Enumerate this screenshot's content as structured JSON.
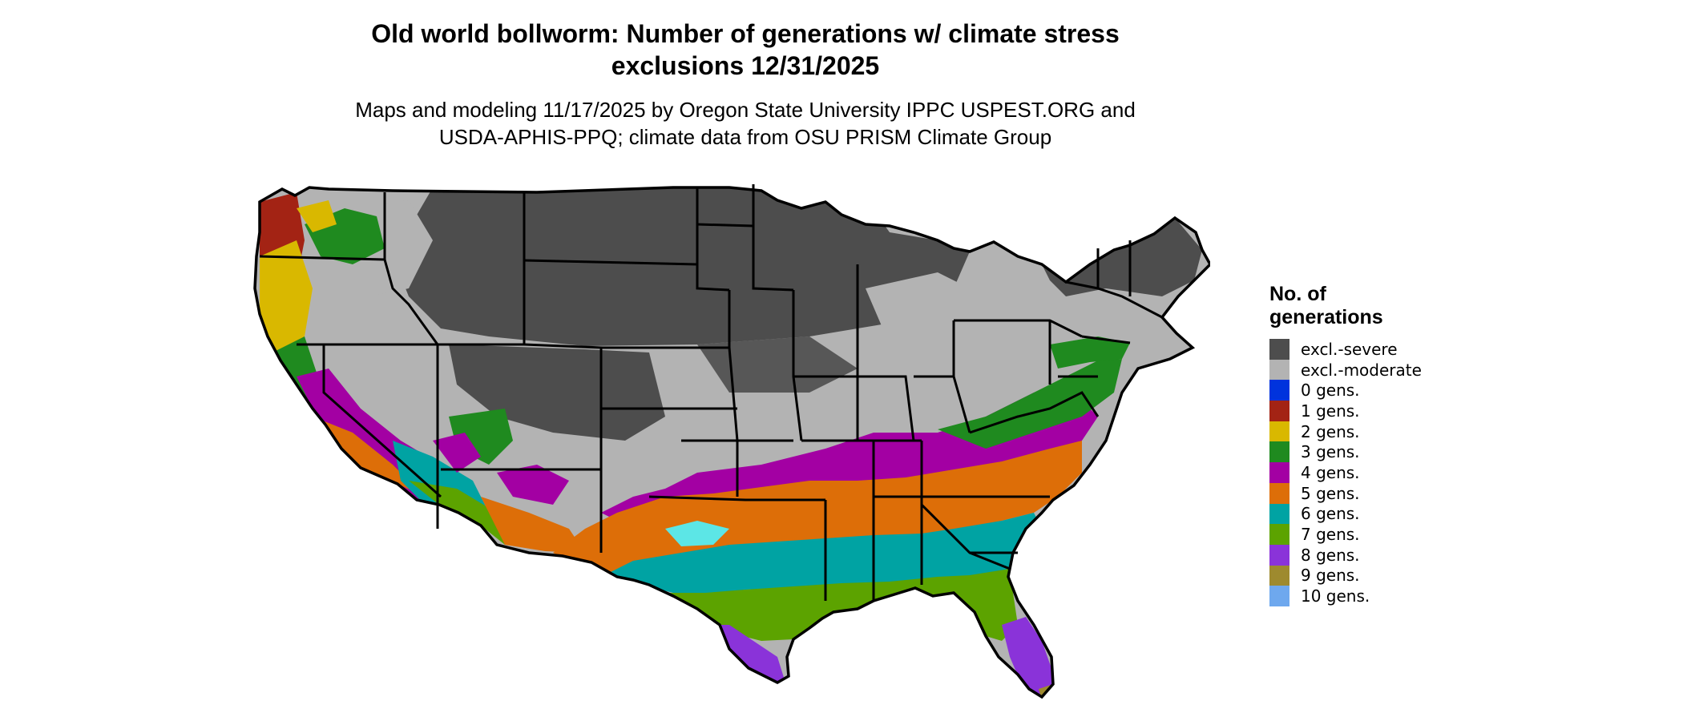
{
  "title": {
    "line1": "Old world bollworm: Number of generations w/ climate stress",
    "line2": "exclusions 12/31/2025"
  },
  "subtitle": {
    "line1": "Maps and modeling 11/17/2025 by Oregon State University IPPC USPEST.ORG and",
    "line2": "USDA-APHIS-PPQ; climate data from OSU PRISM Climate Group"
  },
  "legend": {
    "title_line1": "No. of",
    "title_line2": "generations",
    "items": [
      {
        "label": "excl.-severe",
        "color": "#4d4d4d"
      },
      {
        "label": "excl.-moderate",
        "color": "#b3b3b3"
      },
      {
        "label": "0 gens.",
        "color": "#0033dd"
      },
      {
        "label": "1 gens.",
        "color": "#a32314"
      },
      {
        "label": "2 gens.",
        "color": "#d9b800"
      },
      {
        "label": "3 gens.",
        "color": "#1f8a1f"
      },
      {
        "label": "4 gens.",
        "color": "#a300a3"
      },
      {
        "label": "5 gens.",
        "color": "#dd6e08"
      },
      {
        "label": "6 gens.",
        "color": "#00a3a3"
      },
      {
        "label": "7 gens.",
        "color": "#5ca300"
      },
      {
        "label": "8 gens.",
        "color": "#8a33d9"
      },
      {
        "label": "9 gens.",
        "color": "#9e8a2e"
      },
      {
        "label": "10 gens.",
        "color": "#6ea8ee"
      }
    ]
  }
}
